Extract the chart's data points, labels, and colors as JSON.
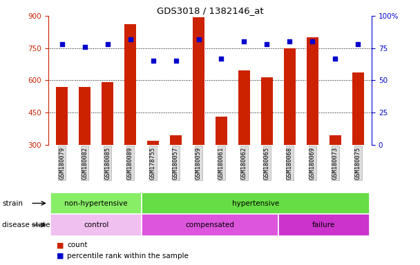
{
  "title": "GDS3018 / 1382146_at",
  "samples": [
    "GSM180079",
    "GSM180082",
    "GSM180085",
    "GSM180089",
    "GSM178755",
    "GSM180057",
    "GSM180059",
    "GSM180061",
    "GSM180062",
    "GSM180065",
    "GSM180068",
    "GSM180069",
    "GSM180073",
    "GSM180075"
  ],
  "counts": [
    570,
    568,
    593,
    860,
    318,
    345,
    893,
    430,
    645,
    615,
    750,
    800,
    345,
    635
  ],
  "percentiles": [
    78,
    76,
    78,
    82,
    65,
    65,
    82,
    67,
    80,
    78,
    80,
    80,
    67,
    78
  ],
  "ylim_left": [
    300,
    900
  ],
  "ylim_right": [
    0,
    100
  ],
  "yticks_left": [
    300,
    450,
    600,
    750,
    900
  ],
  "yticks_right": [
    0,
    25,
    50,
    75,
    100
  ],
  "bar_color": "#cc2200",
  "dot_color": "#0000cc",
  "strain_colors": {
    "non-hypertensive": "#88ee66",
    "hypertensive": "#66dd44"
  },
  "disease_colors": {
    "control": "#f0c0f0",
    "compensated": "#dd55dd",
    "failure": "#cc33cc"
  },
  "strain_groups": [
    {
      "label": "non-hypertensive",
      "start": 0,
      "end": 3
    },
    {
      "label": "hypertensive",
      "start": 4,
      "end": 13
    }
  ],
  "disease_groups": [
    {
      "label": "control",
      "start": 0,
      "end": 3
    },
    {
      "label": "compensated",
      "start": 4,
      "end": 9
    },
    {
      "label": "failure",
      "start": 10,
      "end": 13
    }
  ]
}
